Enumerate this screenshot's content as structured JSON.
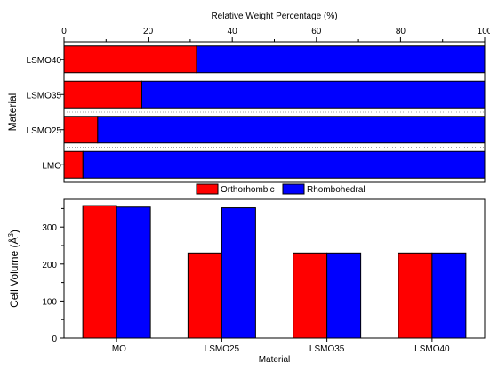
{
  "chart_data": [
    {
      "type": "bar",
      "orientation": "horizontal",
      "stacked": true,
      "xlabel": "Relative Weight Percentage (%)",
      "ylabel": "Material",
      "xlim": [
        0,
        100
      ],
      "x_ticks": [
        "0",
        "20",
        "40",
        "60",
        "80",
        "100"
      ],
      "x_axis_position": "top",
      "categories": [
        "LSMO40",
        "LSMO35",
        "LSMO25",
        "LMO"
      ],
      "series": [
        {
          "name": "Orthorhombic",
          "color": "#ff0000",
          "values": [
            31.5,
            18.5,
            8,
            4.5
          ]
        },
        {
          "name": "Rhombohedral",
          "color": "#0000ff",
          "values": [
            68.5,
            81.5,
            92,
            95.5
          ]
        }
      ],
      "grid": false
    },
    {
      "type": "bar",
      "orientation": "vertical",
      "stacked": false,
      "xlabel": "Material",
      "ylabel": "Cell Volume (Å³)",
      "ylabel_base": "Cell Volume (Å",
      "ylabel_sup": "3",
      "ylabel_close": ")",
      "ylim": [
        0,
        375
      ],
      "y_ticks": [
        "0",
        "100",
        "200",
        "300"
      ],
      "categories": [
        "LMO",
        "LSMO25",
        "LSMO35",
        "LSMO40"
      ],
      "series": [
        {
          "name": "Orthorhombic",
          "color": "#ff0000",
          "values": [
            358,
            230,
            230,
            230
          ]
        },
        {
          "name": "Rhombohedral",
          "color": "#0000ff",
          "values": [
            354,
            352,
            230,
            230
          ]
        }
      ],
      "grid": false
    }
  ],
  "legend": {
    "placement": "between-panels",
    "items": [
      {
        "label": "Orthorhombic",
        "color": "#ff0000"
      },
      {
        "label": "Rhombohedral",
        "color": "#0000ff"
      }
    ]
  }
}
